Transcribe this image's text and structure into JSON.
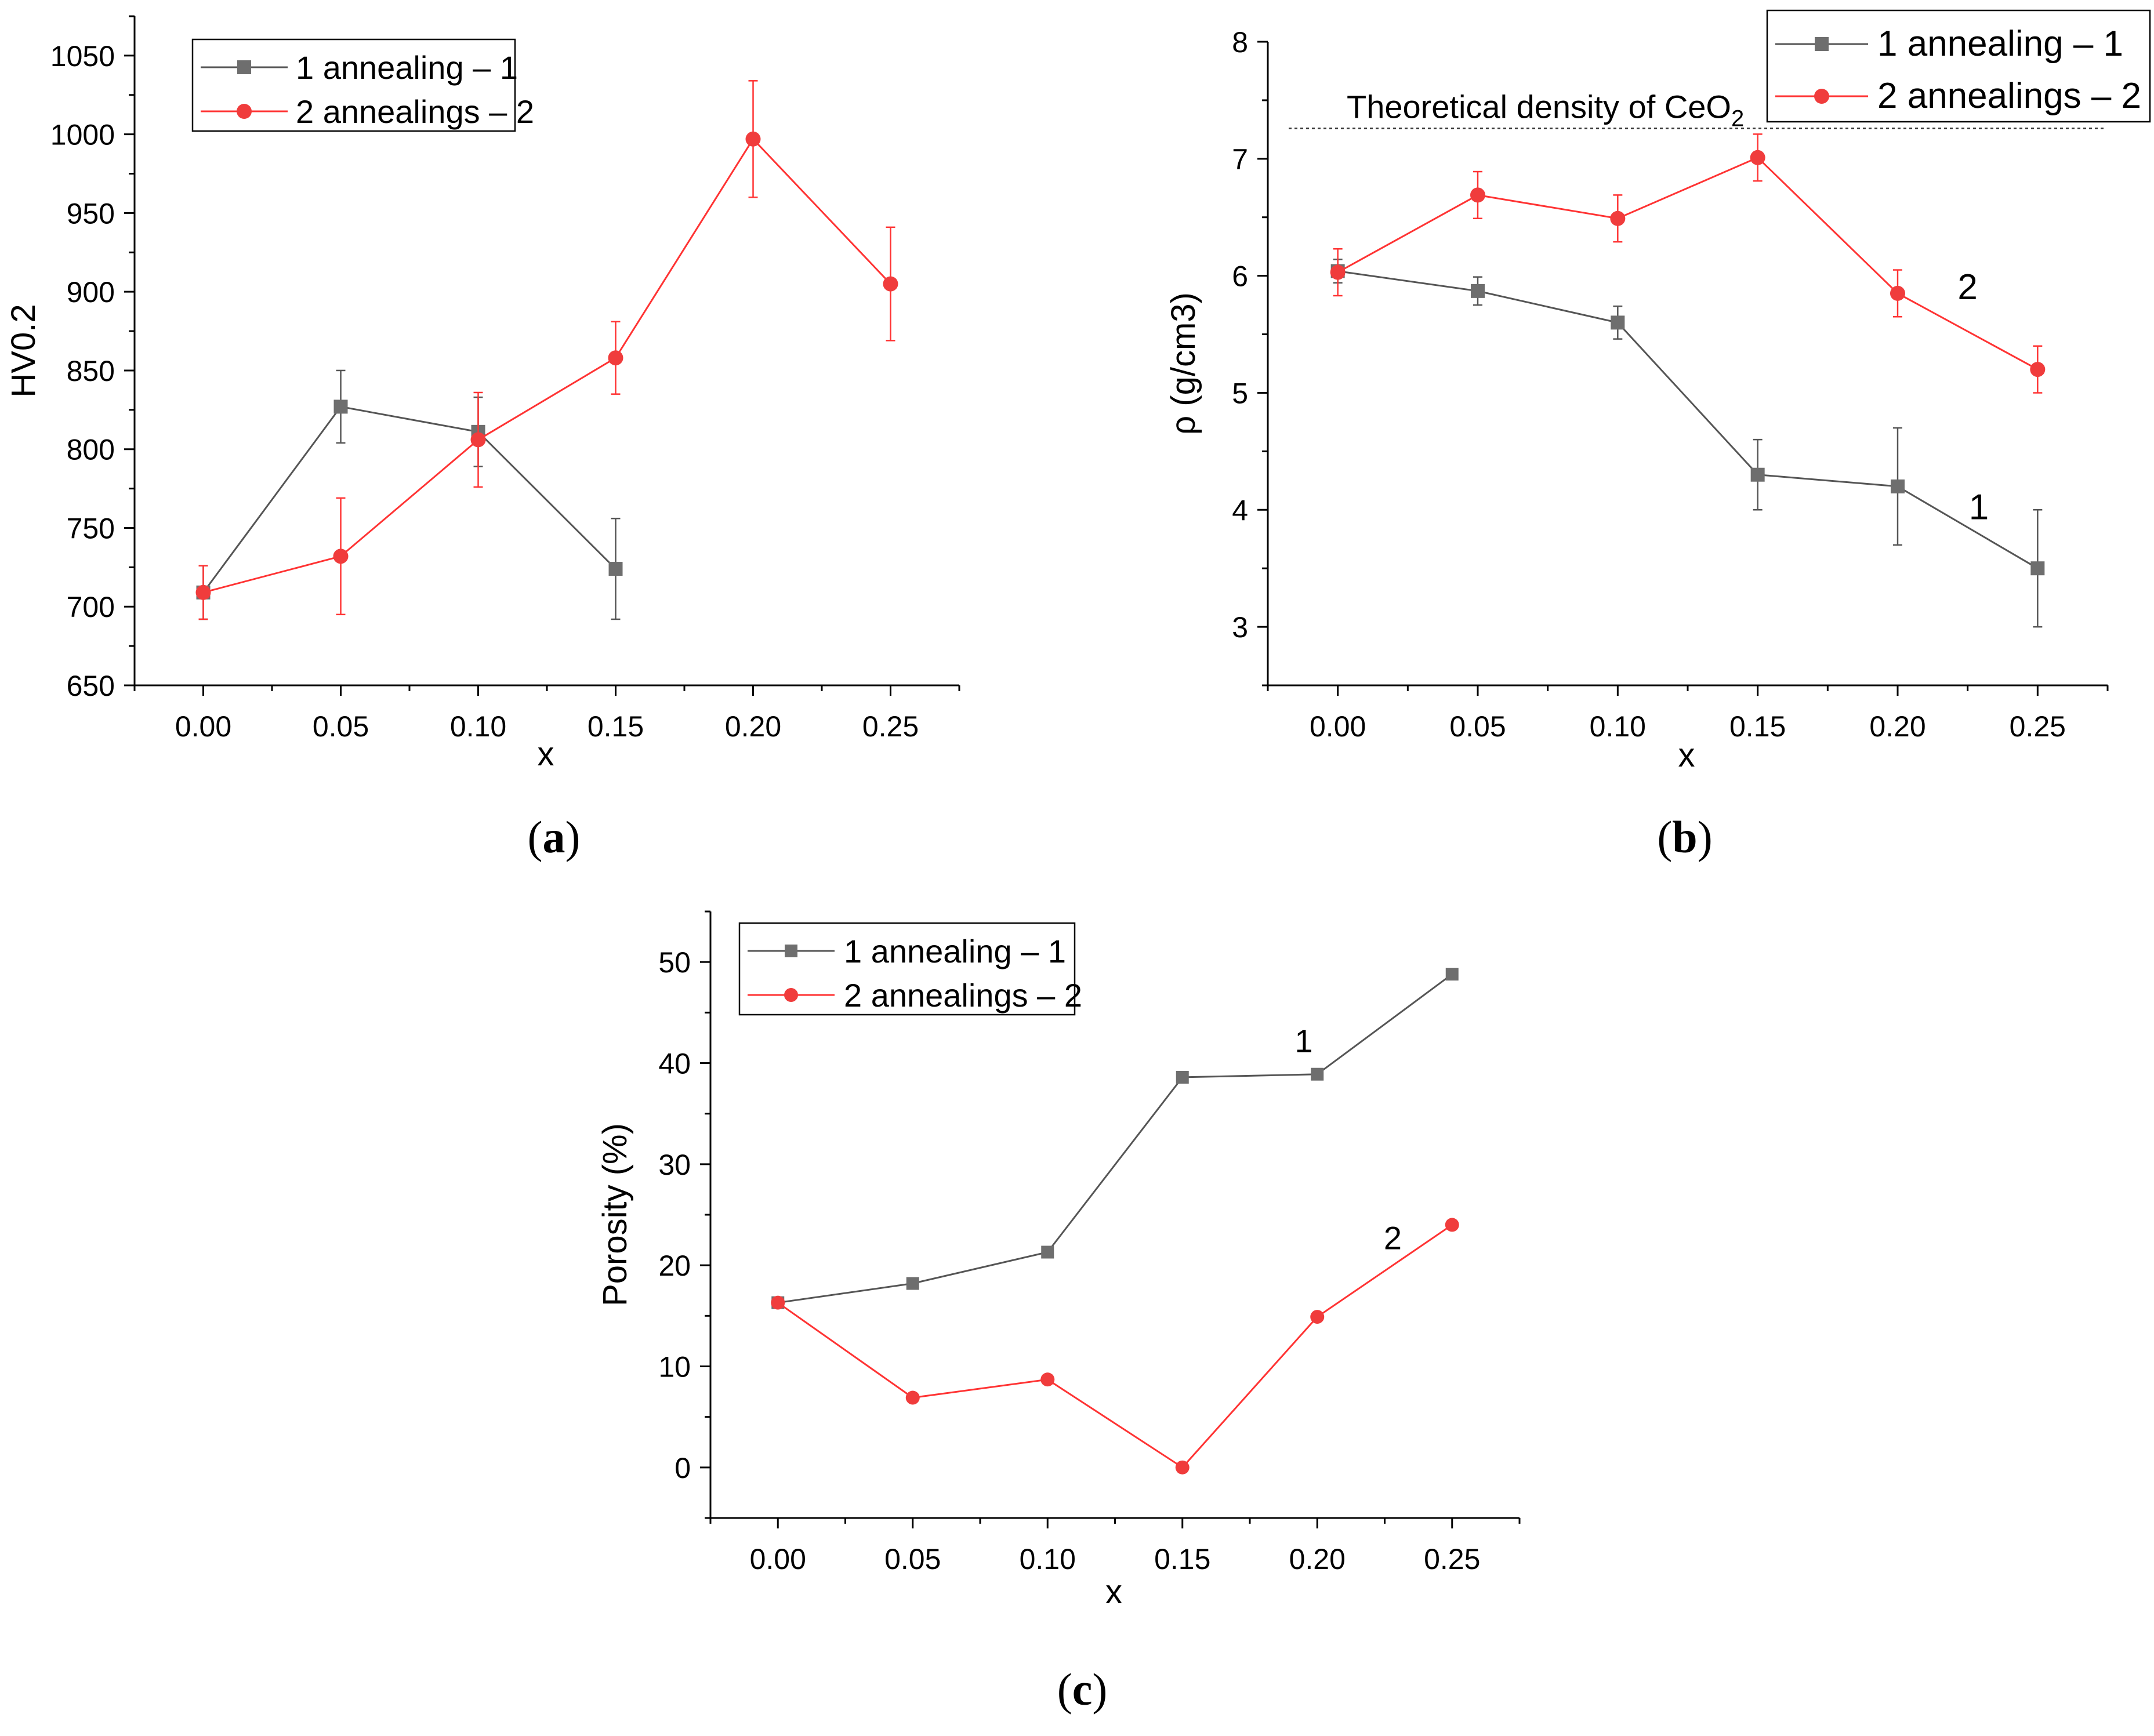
{
  "figure": {
    "colors": {
      "series1": "#555555",
      "series1_marker": "#6e6e6e",
      "series2": "#ff3333",
      "series2_marker": "#f03c3c"
    }
  },
  "chart_data": [
    {
      "id": "a",
      "type": "line",
      "panel_label": {
        "open": "(",
        "letter": "a",
        "close": ")"
      },
      "xlabel": "x",
      "ylabel": "HV0.2",
      "xlim": [
        -0.025,
        0.275
      ],
      "ylim": [
        650,
        1075
      ],
      "xticks": [
        0.0,
        0.05,
        0.1,
        0.15,
        0.2,
        0.25
      ],
      "xtick_labels": [
        "0.00",
        "0.05",
        "0.10",
        "0.15",
        "0.20",
        "0.25"
      ],
      "yticks": [
        650,
        700,
        750,
        800,
        850,
        900,
        950,
        1000,
        1050
      ],
      "ytick_labels": [
        "650",
        "700",
        "750",
        "800",
        "850",
        "900",
        "950",
        "1000",
        "1050"
      ],
      "legend": {
        "position": "top-left",
        "entries": [
          "1 annealing – 1",
          "2 annealings – 2"
        ]
      },
      "series": [
        {
          "name": "1 annealing – 1",
          "marker": "square",
          "x": [
            0.0,
            0.05,
            0.1,
            0.15
          ],
          "y": [
            709,
            827,
            811,
            724
          ],
          "yerr": [
            17,
            23,
            22,
            32
          ]
        },
        {
          "name": "2 annealings – 2",
          "marker": "circle",
          "x": [
            0.0,
            0.05,
            0.1,
            0.15,
            0.2,
            0.25
          ],
          "y": [
            709,
            732,
            806,
            858,
            997,
            905
          ],
          "yerr": [
            17,
            37,
            30,
            23,
            37,
            36
          ]
        }
      ],
      "annotations": []
    },
    {
      "id": "b",
      "type": "line",
      "panel_label": {
        "open": "(",
        "letter": "b",
        "close": ")"
      },
      "xlabel": "x",
      "ylabel": "ρ (g/cm3)",
      "xlim": [
        -0.025,
        0.275
      ],
      "ylim": [
        2.5,
        8.0
      ],
      "xticks": [
        0.0,
        0.05,
        0.1,
        0.15,
        0.2,
        0.25
      ],
      "xtick_labels": [
        "0.00",
        "0.05",
        "0.10",
        "0.15",
        "0.20",
        "0.25"
      ],
      "yticks": [
        3,
        4,
        5,
        6,
        7,
        8
      ],
      "ytick_labels": [
        "3",
        "4",
        "5",
        "6",
        "7",
        "8"
      ],
      "legend": {
        "position": "top-right",
        "entries": [
          "1 annealing – 1",
          "2 annealings – 2"
        ]
      },
      "reference_line": {
        "y": 7.26,
        "style": "dotted",
        "label_main": "Theoretical density of CeO",
        "label_sub": "2"
      },
      "series": [
        {
          "name": "1 annealing – 1",
          "marker": "square",
          "x": [
            0.0,
            0.05,
            0.1,
            0.15,
            0.2,
            0.25
          ],
          "y": [
            6.04,
            5.87,
            5.6,
            4.3,
            4.2,
            3.5
          ],
          "yerr": [
            0.1,
            0.12,
            0.14,
            0.3,
            0.5,
            0.5
          ]
        },
        {
          "name": "2 annealings – 2",
          "marker": "circle",
          "x": [
            0.0,
            0.05,
            0.1,
            0.15,
            0.2,
            0.25
          ],
          "y": [
            6.03,
            6.69,
            6.49,
            7.01,
            5.85,
            5.2
          ],
          "yerr": [
            0.2,
            0.2,
            0.2,
            0.2,
            0.2,
            0.2
          ]
        }
      ],
      "annotations": [
        {
          "text": "2",
          "x": 0.225,
          "y": 5.8
        },
        {
          "text": "1",
          "x": 0.229,
          "y": 3.92
        }
      ]
    },
    {
      "id": "c",
      "type": "line",
      "panel_label": {
        "open": "(",
        "letter": "c",
        "close": ")"
      },
      "xlabel": "x",
      "ylabel": "Porosity (%)",
      "xlim": [
        -0.025,
        0.275
      ],
      "ylim": [
        -5,
        55
      ],
      "xticks": [
        0.0,
        0.05,
        0.1,
        0.15,
        0.2,
        0.25
      ],
      "xtick_labels": [
        "0.00",
        "0.05",
        "0.10",
        "0.15",
        "0.20",
        "0.25"
      ],
      "yticks": [
        0,
        10,
        20,
        30,
        40,
        50
      ],
      "ytick_labels": [
        "0",
        "10",
        "20",
        "30",
        "40",
        "50"
      ],
      "legend": {
        "position": "top-left",
        "entries": [
          "1 annealing – 1",
          "2 annealings – 2"
        ]
      },
      "series": [
        {
          "name": "1 annealing – 1",
          "marker": "square",
          "x": [
            0.0,
            0.05,
            0.1,
            0.15,
            0.2,
            0.25
          ],
          "y": [
            16.3,
            18.2,
            21.3,
            38.6,
            38.9,
            48.8
          ]
        },
        {
          "name": "2 annealings – 2",
          "marker": "circle",
          "x": [
            0.0,
            0.05,
            0.1,
            0.15,
            0.2,
            0.25
          ],
          "y": [
            16.3,
            6.9,
            8.7,
            0.0,
            14.9,
            24.0
          ]
        }
      ],
      "annotations": [
        {
          "text": "1",
          "x": 0.195,
          "y": 41.1
        },
        {
          "text": "2",
          "x": 0.228,
          "y": 21.6
        }
      ]
    }
  ]
}
